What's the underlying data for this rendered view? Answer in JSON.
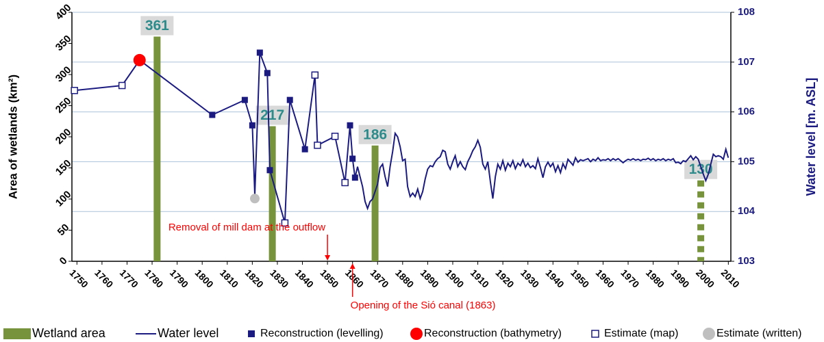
{
  "chart_data": {
    "type": "combo",
    "y_label": "Area of wetlands (km²)",
    "y2_label": "Water level [m. ASL]",
    "xlim": [
      1748,
      2011
    ],
    "xticks": [
      1750,
      1760,
      1770,
      1780,
      1790,
      1800,
      1810,
      1820,
      1830,
      1840,
      1850,
      1860,
      1870,
      1880,
      1890,
      1900,
      1910,
      1920,
      1930,
      1940,
      1950,
      1960,
      1970,
      1980,
      1990,
      2000,
      2010
    ],
    "ylim": [
      0,
      400
    ],
    "yticks": [
      0,
      50,
      100,
      150,
      200,
      250,
      300,
      350,
      400
    ],
    "y2lim": [
      103,
      108
    ],
    "y2ticks": [
      103,
      104,
      105,
      106,
      107,
      108
    ],
    "grid": "y2",
    "grid_color": "#a9c1d9",
    "annotations": [
      {
        "text": "Removal of mill dam at the outflow",
        "x": 1850,
        "direction": "down"
      },
      {
        "text": "Opening of the Sió canal (1863)",
        "x": 1860,
        "direction": "up"
      }
    ],
    "series": [
      {
        "name": "Wetland area",
        "type": "bar",
        "color": "#77933c",
        "x": [
          1782,
          1828,
          1869,
          1999
        ],
        "values": [
          361,
          217,
          186,
          130
        ],
        "dashed": [
          false,
          false,
          false,
          true
        ]
      },
      {
        "name": "Water level",
        "type": "line",
        "axis": "y2",
        "color": "#1a1a80",
        "x": [
          1749,
          1768,
          1775,
          1804,
          1817,
          1820,
          1821,
          1823,
          1826,
          1827,
          1833,
          1835,
          1841,
          1845,
          1846,
          1853,
          1857,
          1859,
          1860,
          1861,
          1862,
          1863,
          1864,
          1865,
          1866,
          1867,
          1868,
          1869,
          1870,
          1871,
          1872,
          1873,
          1874,
          1875,
          1876,
          1877,
          1878,
          1879,
          1880,
          1881,
          1882,
          1883,
          1884,
          1885,
          1886,
          1887,
          1888,
          1889,
          1890,
          1891,
          1892,
          1893,
          1894,
          1895,
          1896,
          1897,
          1898,
          1899,
          1900,
          1901,
          1902,
          1903,
          1904,
          1905,
          1906,
          1907,
          1908,
          1909,
          1910,
          1911,
          1912,
          1913,
          1914,
          1915,
          1916,
          1917,
          1918,
          1919,
          1920,
          1921,
          1922,
          1923,
          1924,
          1925,
          1926,
          1927,
          1928,
          1929,
          1930,
          1931,
          1932,
          1933,
          1934,
          1935,
          1936,
          1937,
          1938,
          1939,
          1940,
          1941,
          1942,
          1943,
          1944,
          1945,
          1946,
          1947,
          1948,
          1949,
          1950,
          1951,
          1952,
          1953,
          1954,
          1955,
          1956,
          1957,
          1958,
          1959,
          1960,
          1961,
          1962,
          1963,
          1964,
          1965,
          1966,
          1967,
          1968,
          1969,
          1970,
          1971,
          1972,
          1973,
          1974,
          1975,
          1976,
          1977,
          1978,
          1979,
          1980,
          1981,
          1982,
          1983,
          1984,
          1985,
          1986,
          1987,
          1988,
          1989,
          1990,
          1991,
          1992,
          1993,
          1994,
          1995,
          1996,
          1997,
          1998,
          1999,
          2000,
          2001,
          2002,
          2003,
          2004,
          2005,
          2006,
          2007,
          2008,
          2009,
          2010
        ],
        "values": [
          106.43,
          106.53,
          107.04,
          105.94,
          106.24,
          105.73,
          104.33,
          107.19,
          106.78,
          104.83,
          103.77,
          106.24,
          105.25,
          106.74,
          105.33,
          105.51,
          104.58,
          105.73,
          105.06,
          104.68,
          104.9,
          104.7,
          104.5,
          104.2,
          104.06,
          104.2,
          104.25,
          104.4,
          104.55,
          104.88,
          104.95,
          104.7,
          104.5,
          104.9,
          105.2,
          105.57,
          105.5,
          105.3,
          105.02,
          105.05,
          104.5,
          104.3,
          104.37,
          104.3,
          104.45,
          104.26,
          104.4,
          104.65,
          104.85,
          104.92,
          104.9,
          105.0,
          105.06,
          105.1,
          105.23,
          105.2,
          104.95,
          104.85,
          105.0,
          105.12,
          104.9,
          105.0,
          104.9,
          104.84,
          105.0,
          105.1,
          105.22,
          105.3,
          105.43,
          105.29,
          104.95,
          104.85,
          105.0,
          104.6,
          104.26,
          104.7,
          104.95,
          104.85,
          105.02,
          104.83,
          104.97,
          104.9,
          105.02,
          104.86,
          104.97,
          104.92,
          105.04,
          104.9,
          104.97,
          104.88,
          104.92,
          104.86,
          105.06,
          104.88,
          104.68,
          104.9,
          104.99,
          104.9,
          104.97,
          104.8,
          104.92,
          104.78,
          104.96,
          104.86,
          105.05,
          104.99,
          104.93,
          105.08,
          104.99,
          105.04,
          105.02,
          105.04,
          105.06,
          105.0,
          105.05,
          105.02,
          105.08,
          105.02,
          105.04,
          105.03,
          105.06,
          105.02,
          105.06,
          105.03,
          105.06,
          105.02,
          104.98,
          105.02,
          105.05,
          105.03,
          105.06,
          105.03,
          105.05,
          105.02,
          105.05,
          105.04,
          105.07,
          105.03,
          105.06,
          105.02,
          105.05,
          105.03,
          105.06,
          105.02,
          105.05,
          105.03,
          105.06,
          104.98,
          104.99,
          104.96,
          105.02,
          105.0,
          105.06,
          105.12,
          105.04,
          105.1,
          105.05,
          104.9,
          104.75,
          104.62,
          104.75,
          104.95,
          105.15,
          105.1,
          105.12,
          105.1,
          105.05,
          105.25,
          105.08
        ]
      },
      {
        "name": "Reconstruction (levelling)",
        "type": "marker",
        "marker": "filled-square",
        "axis": "y2",
        "color": "#1a1a80",
        "x": [
          1804,
          1817,
          1820,
          1823,
          1826,
          1827,
          1835,
          1841,
          1859,
          1860,
          1861
        ],
        "values": [
          105.94,
          106.24,
          105.73,
          107.19,
          106.78,
          104.83,
          106.24,
          105.25,
          105.73,
          105.06,
          104.68
        ]
      },
      {
        "name": "Reconstruction (bathymetry)",
        "type": "marker",
        "marker": "circle",
        "axis": "y2",
        "color": "#ff0000",
        "x": [
          1775
        ],
        "values": [
          107.04
        ]
      },
      {
        "name": "Estimate (map)",
        "type": "marker",
        "marker": "open-square",
        "axis": "y2",
        "color": "#1a1a80",
        "x": [
          1749,
          1768,
          1833,
          1845,
          1846,
          1853,
          1857
        ],
        "values": [
          106.43,
          106.53,
          103.77,
          106.74,
          105.33,
          105.51,
          104.58
        ]
      },
      {
        "name": "Estimate (written)",
        "type": "marker",
        "marker": "circle",
        "axis": "y2",
        "color": "#bfbfbf",
        "x": [
          1821
        ],
        "values": [
          104.26
        ]
      }
    ]
  }
}
